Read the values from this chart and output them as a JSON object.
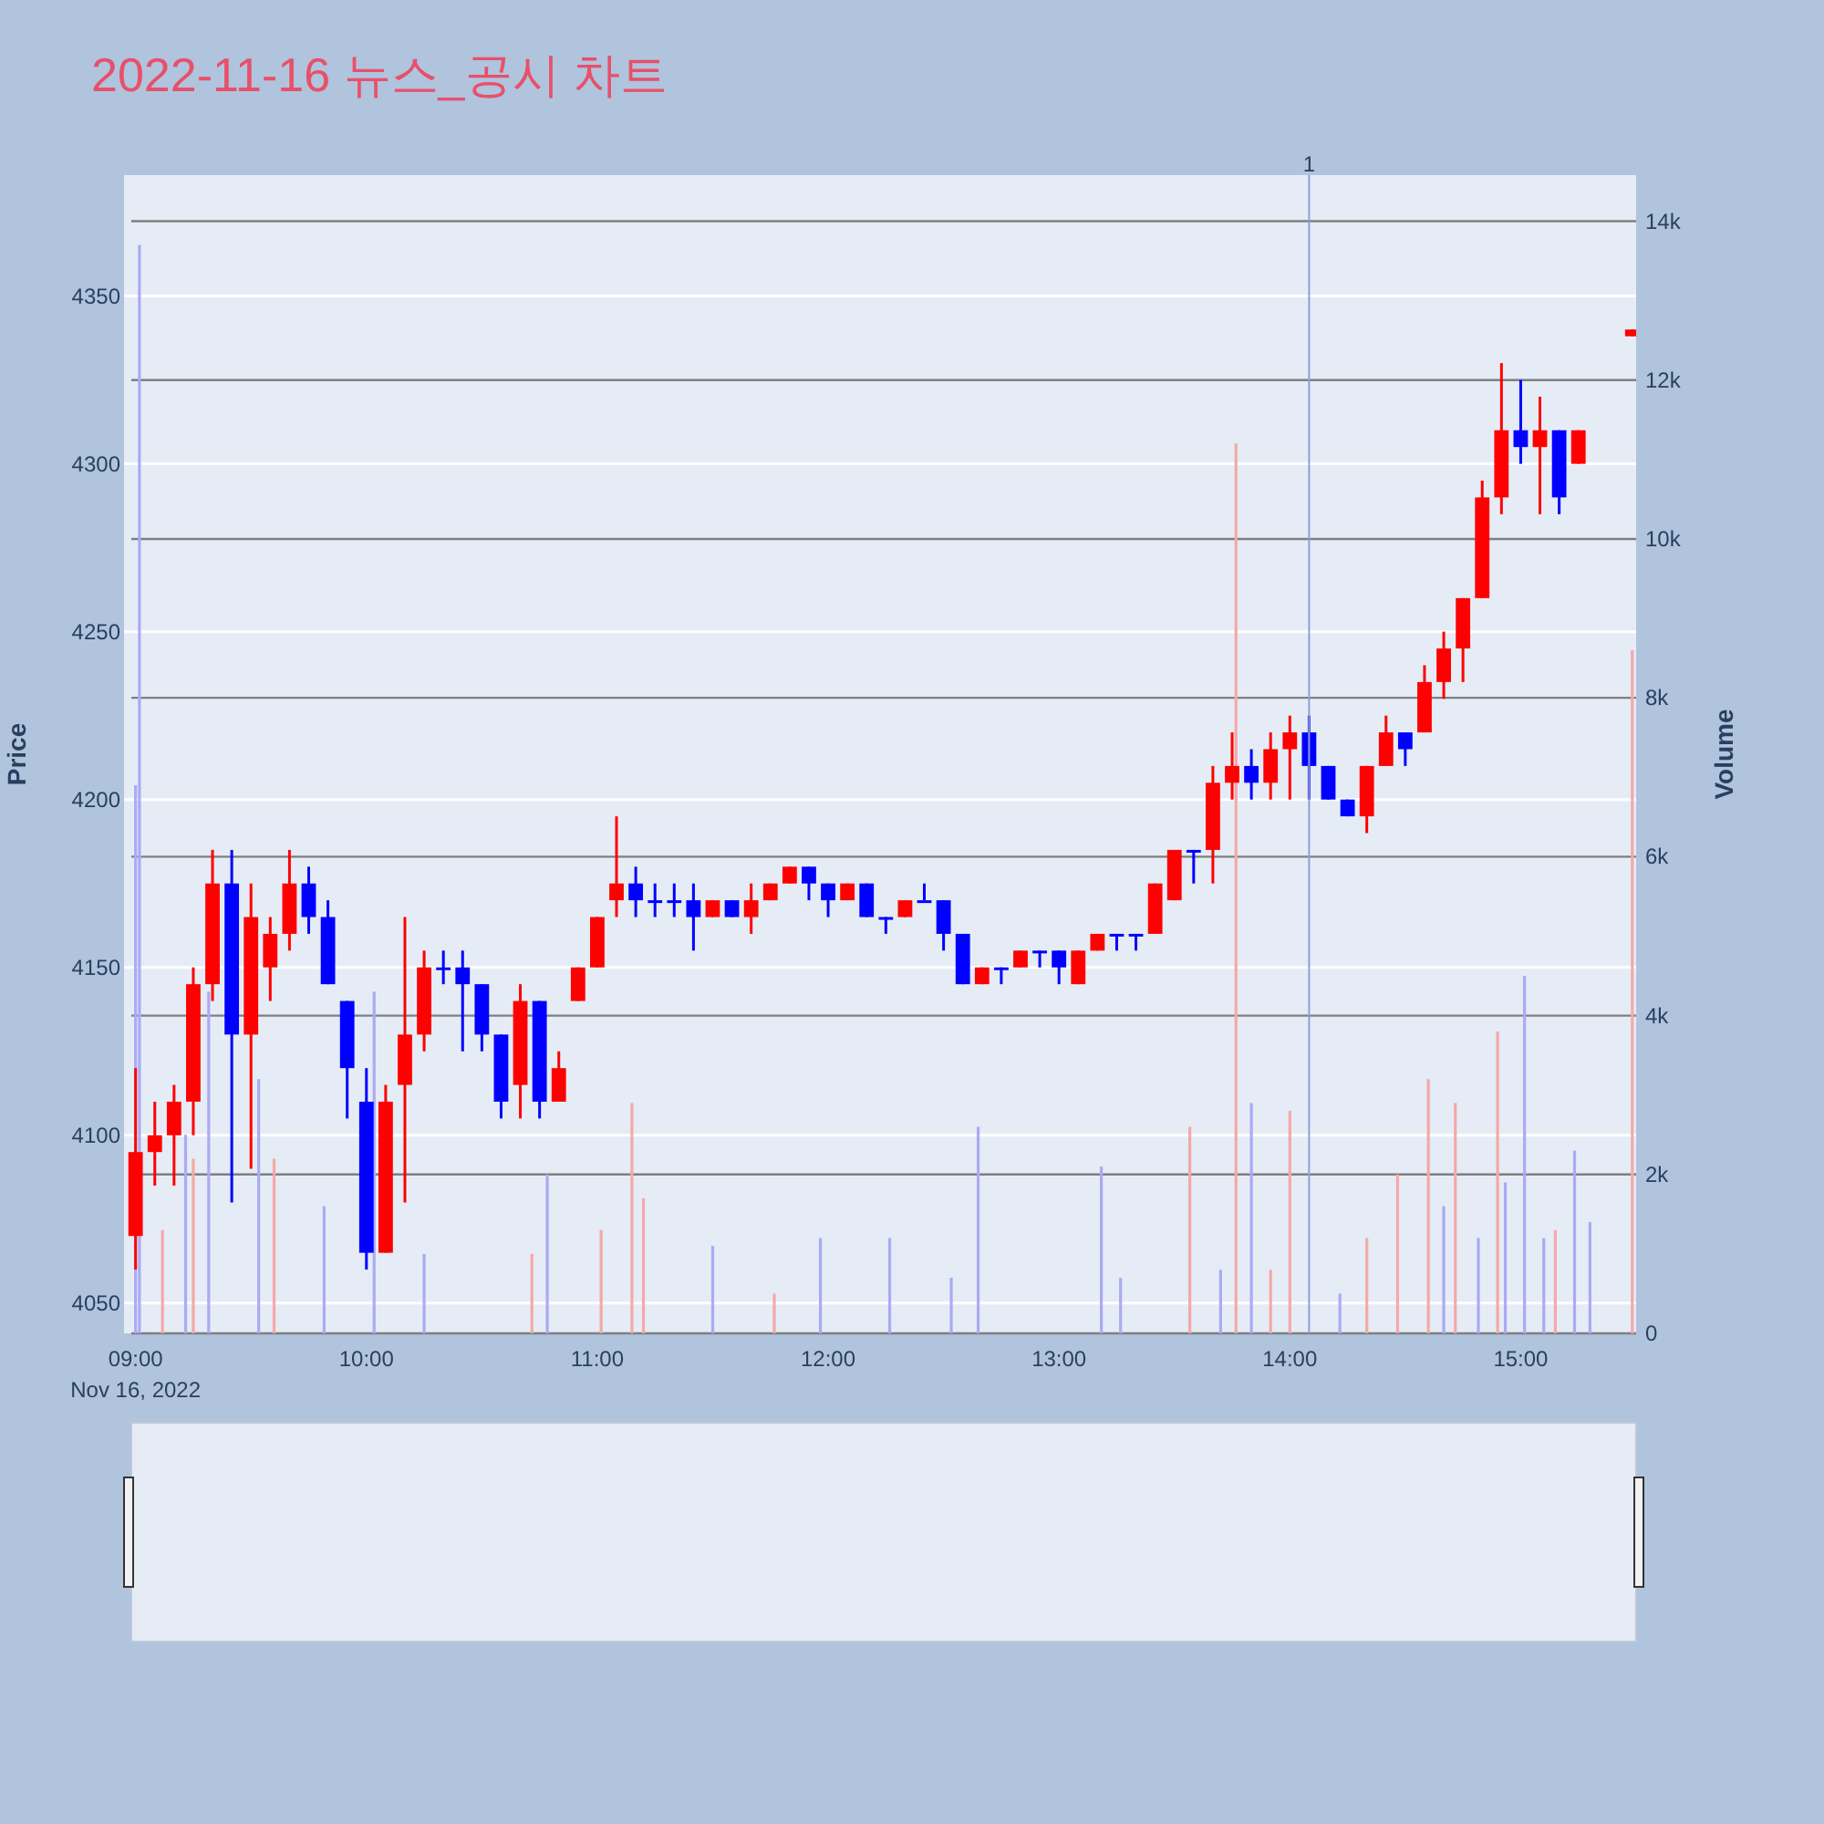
{
  "chart_data": {
    "type": "candlestick",
    "title": "2022-11-16 뉴스_공시 차트",
    "ylabel": "Price",
    "y2label": "Volume",
    "x": [
      "2022-11-16T09:00",
      "2022-11-16T09:05",
      "2022-11-16T09:10",
      "2022-11-16T09:15",
      "2022-11-16T09:20",
      "2022-11-16T09:25",
      "2022-11-16T09:30",
      "2022-11-16T09:35",
      "2022-11-16T09:40",
      "2022-11-16T09:45",
      "2022-11-16T09:50",
      "2022-11-16T09:55",
      "2022-11-16T10:00",
      "2022-11-16T10:05",
      "2022-11-16T10:10",
      "2022-11-16T10:15",
      "2022-11-16T10:20",
      "2022-11-16T10:25",
      "2022-11-16T10:30",
      "2022-11-16T10:35",
      "2022-11-16T10:40",
      "2022-11-16T10:45",
      "2022-11-16T10:50",
      "2022-11-16T10:55",
      "2022-11-16T11:00",
      "2022-11-16T11:05",
      "2022-11-16T11:10",
      "2022-11-16T11:15",
      "2022-11-16T11:20",
      "2022-11-16T11:25",
      "2022-11-16T11:30",
      "2022-11-16T11:35",
      "2022-11-16T11:40",
      "2022-11-16T11:45",
      "2022-11-16T11:50",
      "2022-11-16T11:55",
      "2022-11-16T12:00",
      "2022-11-16T12:05",
      "2022-11-16T12:10",
      "2022-11-16T12:15",
      "2022-11-16T12:20",
      "2022-11-16T12:25",
      "2022-11-16T12:30",
      "2022-11-16T12:35",
      "2022-11-16T12:40",
      "2022-11-16T12:45",
      "2022-11-16T12:50",
      "2022-11-16T12:55",
      "2022-11-16T13:00",
      "2022-11-16T13:05",
      "2022-11-16T13:10",
      "2022-11-16T13:15",
      "2022-11-16T13:20",
      "2022-11-16T13:25",
      "2022-11-16T13:30",
      "2022-11-16T13:35",
      "2022-11-16T13:40",
      "2022-11-16T13:45",
      "2022-11-16T13:50",
      "2022-11-16T13:55",
      "2022-11-16T14:00",
      "2022-11-16T14:05",
      "2022-11-16T14:10",
      "2022-11-16T14:15",
      "2022-11-16T14:20",
      "2022-11-16T14:25",
      "2022-11-16T14:30",
      "2022-11-16T14:35",
      "2022-11-16T14:40",
      "2022-11-16T14:45",
      "2022-11-16T14:50",
      "2022-11-16T14:55",
      "2022-11-16T15:00",
      "2022-11-16T15:05",
      "2022-11-16T15:10",
      "2022-11-16T15:15",
      "2022-11-16T15:29"
    ],
    "ohlc": [
      [
        4070,
        4120,
        4060,
        4095
      ],
      [
        4095,
        4110,
        4085,
        4100
      ],
      [
        4100,
        4115,
        4085,
        4110
      ],
      [
        4110,
        4150,
        4100,
        4145
      ],
      [
        4145,
        4185,
        4140,
        4175
      ],
      [
        4175,
        4185,
        4080,
        4130
      ],
      [
        4130,
        4175,
        4090,
        4165
      ],
      [
        4150,
        4165,
        4140,
        4160
      ],
      [
        4160,
        4185,
        4155,
        4175
      ],
      [
        4175,
        4180,
        4160,
        4165
      ],
      [
        4165,
        4170,
        4145,
        4145
      ],
      [
        4140,
        4140,
        4105,
        4120
      ],
      [
        4110,
        4120,
        4060,
        4065
      ],
      [
        4065,
        4115,
        4065,
        4110
      ],
      [
        4115,
        4165,
        4080,
        4130
      ],
      [
        4130,
        4155,
        4125,
        4150
      ],
      [
        4150,
        4155,
        4145,
        4150
      ],
      [
        4150,
        4155,
        4125,
        4145
      ],
      [
        4145,
        4145,
        4125,
        4130
      ],
      [
        4130,
        4130,
        4105,
        4110
      ],
      [
        4115,
        4145,
        4105,
        4140
      ],
      [
        4140,
        4140,
        4105,
        4110
      ],
      [
        4110,
        4125,
        4110,
        4120
      ],
      [
        4140,
        4150,
        4140,
        4150
      ],
      [
        4150,
        4165,
        4150,
        4165
      ],
      [
        4170,
        4195,
        4165,
        4175
      ],
      [
        4175,
        4180,
        4165,
        4170
      ],
      [
        4170,
        4175,
        4165,
        4170
      ],
      [
        4170,
        4175,
        4165,
        4170
      ],
      [
        4170,
        4175,
        4155,
        4165
      ],
      [
        4165,
        4170,
        4165,
        4170
      ],
      [
        4170,
        4170,
        4165,
        4165
      ],
      [
        4165,
        4175,
        4160,
        4170
      ],
      [
        4170,
        4175,
        4170,
        4175
      ],
      [
        4175,
        4180,
        4175,
        4180
      ],
      [
        4180,
        4180,
        4170,
        4175
      ],
      [
        4175,
        4175,
        4165,
        4170
      ],
      [
        4170,
        4175,
        4170,
        4175
      ],
      [
        4175,
        4175,
        4165,
        4165
      ],
      [
        4165,
        4165,
        4160,
        4165
      ],
      [
        4165,
        4170,
        4165,
        4170
      ],
      [
        4170,
        4175,
        4170,
        4170
      ],
      [
        4170,
        4170,
        4155,
        4160
      ],
      [
        4160,
        4160,
        4145,
        4145
      ],
      [
        4145,
        4150,
        4145,
        4150
      ],
      [
        4150,
        4150,
        4145,
        4150
      ],
      [
        4150,
        4155,
        4150,
        4155
      ],
      [
        4155,
        4155,
        4150,
        4155
      ],
      [
        4155,
        4155,
        4145,
        4150
      ],
      [
        4145,
        4155,
        4145,
        4155
      ],
      [
        4155,
        4160,
        4155,
        4160
      ],
      [
        4160,
        4160,
        4155,
        4160
      ],
      [
        4160,
        4160,
        4155,
        4160
      ],
      [
        4160,
        4175,
        4160,
        4175
      ],
      [
        4170,
        4185,
        4170,
        4185
      ],
      [
        4185,
        4185,
        4175,
        4185
      ],
      [
        4185,
        4210,
        4175,
        4205
      ],
      [
        4205,
        4220,
        4200,
        4210
      ],
      [
        4210,
        4215,
        4200,
        4205
      ],
      [
        4205,
        4220,
        4200,
        4215
      ],
      [
        4215,
        4225,
        4200,
        4220
      ],
      [
        4220,
        4225,
        4200,
        4210
      ],
      [
        4210,
        4210,
        4200,
        4200
      ],
      [
        4200,
        4200,
        4195,
        4195
      ],
      [
        4195,
        4210,
        4190,
        4210
      ],
      [
        4210,
        4225,
        4210,
        4220
      ],
      [
        4220,
        4220,
        4210,
        4215
      ],
      [
        4220,
        4240,
        4220,
        4235
      ],
      [
        4235,
        4250,
        4230,
        4245
      ],
      [
        4245,
        4260,
        4235,
        4260
      ],
      [
        4260,
        4295,
        4260,
        4290
      ],
      [
        4290,
        4330,
        4285,
        4310
      ],
      [
        4310,
        4325,
        4300,
        4305
      ],
      [
        4305,
        4320,
        4285,
        4310
      ],
      [
        4310,
        4310,
        4285,
        4290
      ],
      [
        4300,
        4310,
        4300,
        4310
      ],
      [
        4338,
        4340,
        4338,
        4340
      ]
    ],
    "colors": [
      "#ff0000",
      "#ff0000",
      "#ff0000",
      "#ff0000",
      "#ff0000",
      "#0000ff",
      "#ff0000",
      "#ff0000",
      "#ff0000",
      "#0000ff",
      "#0000ff",
      "#0000ff",
      "#0000ff",
      "#ff0000",
      "#ff0000",
      "#ff0000",
      "#0000ff",
      "#0000ff",
      "#0000ff",
      "#0000ff",
      "#ff0000",
      "#0000ff",
      "#ff0000",
      "#ff0000",
      "#ff0000",
      "#ff0000",
      "#0000ff",
      "#0000ff",
      "#0000ff",
      "#0000ff",
      "#ff0000",
      "#0000ff",
      "#ff0000",
      "#ff0000",
      "#ff0000",
      "#0000ff",
      "#0000ff",
      "#ff0000",
      "#0000ff",
      "#0000ff",
      "#ff0000",
      "#0000ff",
      "#0000ff",
      "#0000ff",
      "#ff0000",
      "#0000ff",
      "#ff0000",
      "#0000ff",
      "#0000ff",
      "#ff0000",
      "#ff0000",
      "#0000ff",
      "#0000ff",
      "#ff0000",
      "#ff0000",
      "#0000ff",
      "#ff0000",
      "#ff0000",
      "#0000ff",
      "#ff0000",
      "#ff0000",
      "#0000ff",
      "#0000ff",
      "#0000ff",
      "#ff0000",
      "#ff0000",
      "#0000ff",
      "#ff0000",
      "#ff0000",
      "#ff0000",
      "#ff0000",
      "#ff0000",
      "#0000ff",
      "#ff0000",
      "#0000ff",
      "#ff0000",
      "#ff0000"
    ],
    "series": [
      {
        "type": "bar",
        "axis": "y2",
        "x": [
          "2022-11-16T09:00",
          "2022-11-16T09:01",
          "2022-11-16T09:07",
          "2022-11-16T09:13",
          "2022-11-16T09:15",
          "2022-11-16T09:19",
          "2022-11-16T09:32",
          "2022-11-16T09:36",
          "2022-11-16T09:49",
          "2022-11-16T10:02",
          "2022-11-16T10:15",
          "2022-11-16T10:43",
          "2022-11-16T10:47",
          "2022-11-16T11:01",
          "2022-11-16T11:09",
          "2022-11-16T11:12",
          "2022-11-16T11:30",
          "2022-11-16T11:46",
          "2022-11-16T11:58",
          "2022-11-16T12:16",
          "2022-11-16T12:32",
          "2022-11-16T12:39",
          "2022-11-16T13:11",
          "2022-11-16T13:16",
          "2022-11-16T13:34",
          "2022-11-16T13:42",
          "2022-11-16T13:46",
          "2022-11-16T13:50",
          "2022-11-16T13:55",
          "2022-11-16T14:00",
          "2022-11-16T14:13",
          "2022-11-16T14:20",
          "2022-11-16T14:28",
          "2022-11-16T14:36",
          "2022-11-16T14:40",
          "2022-11-16T14:43",
          "2022-11-16T14:49",
          "2022-11-16T14:54",
          "2022-11-16T14:56",
          "2022-11-16T15:01",
          "2022-11-16T15:06",
          "2022-11-16T15:09",
          "2022-11-16T15:14",
          "2022-11-16T15:18",
          "2022-11-16T15:29"
        ],
        "values": [
          6900,
          13700,
          1300,
          2500,
          2200,
          4300,
          3200,
          2200,
          1600,
          4300,
          1000,
          1000,
          2000,
          1300,
          2900,
          1700,
          1100,
          500,
          1200,
          1200,
          700,
          2600,
          2100,
          700,
          2600,
          800,
          11200,
          2900,
          800,
          2800,
          500,
          1200,
          2000,
          3200,
          1600,
          2900,
          1200,
          3800,
          1900,
          4500,
          1200,
          1300,
          2300,
          1400,
          8600
        ],
        "colors": [
          "#aaaaf5",
          "#aaaaf5",
          "#f5a8a8",
          "#aaaaf5",
          "#f5a8a8",
          "#aaaaf5",
          "#aaaaf5",
          "#f5a8a8",
          "#aaaaf5",
          "#aaaaf5",
          "#aaaaf5",
          "#f5a8a8",
          "#aaaaf5",
          "#f5a8a8",
          "#f5a8a8",
          "#f5a8a8",
          "#aaaaf5",
          "#f5a8a8",
          "#aaaaf5",
          "#aaaaf5",
          "#aaaaf5",
          "#aaaaf5",
          "#aaaaf5",
          "#aaaaf5",
          "#f5a8a8",
          "#aaaaf5",
          "#f5a8a8",
          "#aaaaf5",
          "#f5a8a8",
          "#f5a8a8",
          "#aaaaf5",
          "#f5a8a8",
          "#f5a8a8",
          "#f5a8a8",
          "#aaaaf5",
          "#f5a8a8",
          "#aaaaf5",
          "#f5a8a8",
          "#aaaaf5",
          "#aaaaf5",
          "#aaaaf5",
          "#f5a8a8",
          "#aaaaf5",
          "#aaaaf5",
          "#f5a8a8"
        ]
      }
    ],
    "xlim": [
      "2022-11-16T08:57",
      "2022-11-16T15:30"
    ],
    "xticks": [
      {
        "value": "2022-11-16T09:00",
        "label": "09:00\nNov 16, 2022"
      },
      {
        "value": "2022-11-16T10:00",
        "label": "10:00"
      },
      {
        "value": "2022-11-16T11:00",
        "label": "11:00"
      },
      {
        "value": "2022-11-16T12:00",
        "label": "12:00"
      },
      {
        "value": "2022-11-16T13:00",
        "label": "13:00"
      },
      {
        "value": "2022-11-16T14:00",
        "label": "14:00"
      },
      {
        "value": "2022-11-16T15:00",
        "label": "15:00"
      }
    ],
    "ylim": [
      4041,
      4386
    ],
    "yticks": [
      4050,
      4100,
      4150,
      4200,
      4250,
      4300,
      4350
    ],
    "y2lim": [
      0,
      14580
    ],
    "y2ticks": [
      0,
      {
        "value": 2000,
        "label": "2k"
      },
      {
        "value": 4000,
        "label": "4k"
      },
      {
        "value": 6000,
        "label": "6k"
      },
      {
        "value": 8000,
        "label": "8k"
      },
      {
        "value": 10000,
        "label": "10k"
      },
      {
        "value": 12000,
        "label": "12k"
      },
      {
        "value": 14000,
        "label": "14k"
      }
    ],
    "ref_lines": [
      {
        "axis": "x",
        "value": "2022-11-16T14:05",
        "label": "1",
        "color": "#8f9fd8"
      }
    ],
    "grid": "y"
  }
}
